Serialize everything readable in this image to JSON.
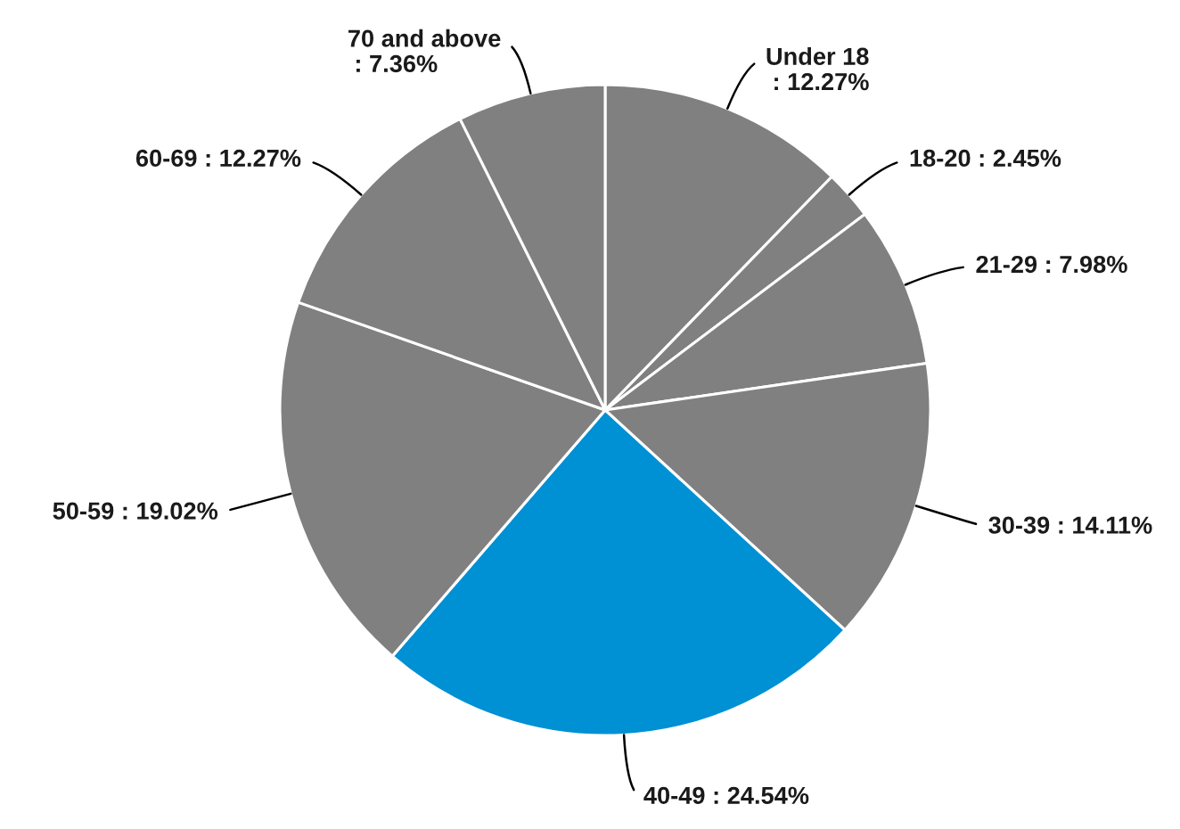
{
  "chart_data": {
    "type": "pie",
    "categories": [
      "Under 18",
      "18-20",
      "21-29",
      "30-39",
      "40-49",
      "50-59",
      "60-69",
      "70 and above"
    ],
    "values": [
      12.27,
      2.45,
      7.98,
      14.11,
      24.54,
      19.02,
      12.27,
      7.36
    ],
    "colors": [
      "#808080",
      "#808080",
      "#808080",
      "#808080",
      "#0090d4",
      "#808080",
      "#808080",
      "#808080"
    ],
    "value_labels": [
      ": 12.27%",
      ": 2.45%",
      ": 7.98%",
      ": 14.11%",
      ": 24.54%",
      ": 19.02%",
      ": 12.27%",
      ": 7.36%"
    ]
  }
}
